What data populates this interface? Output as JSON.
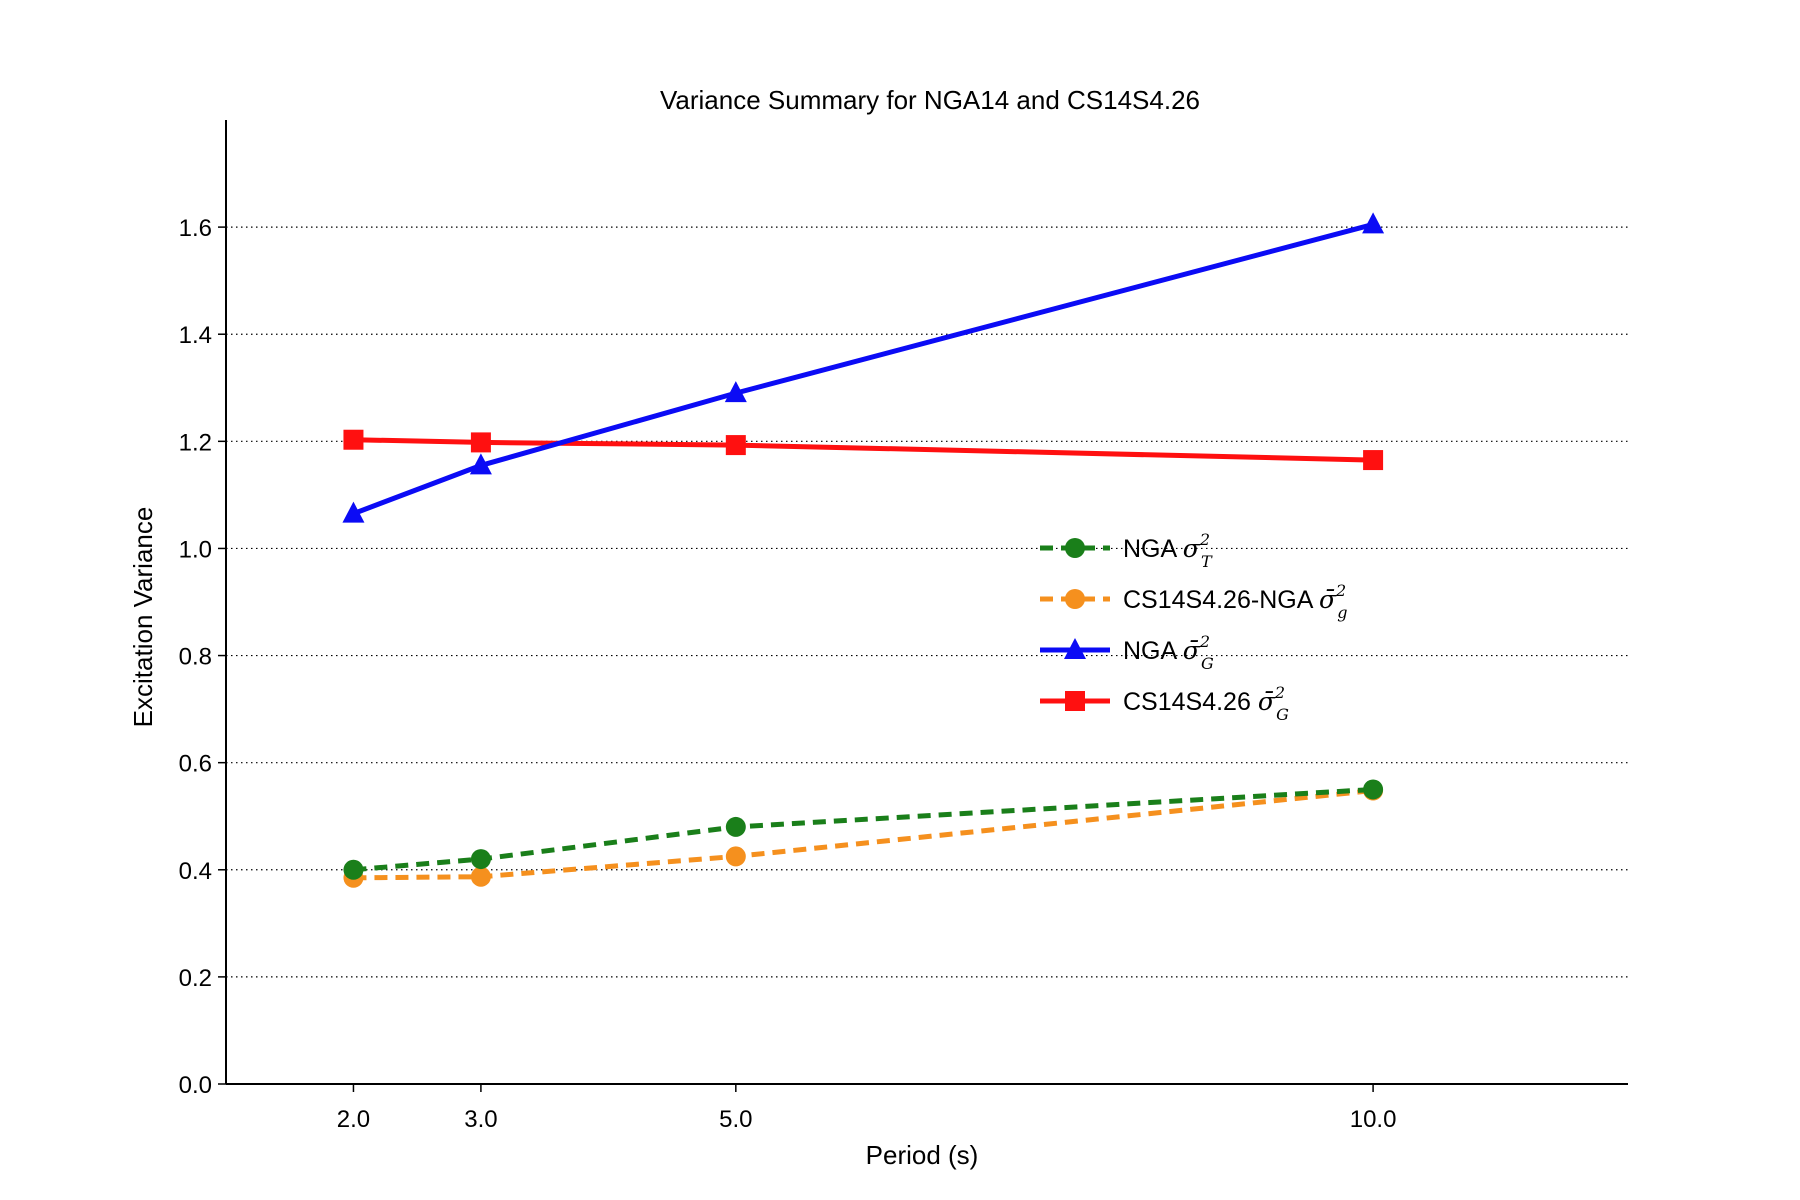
{
  "chart_data": {
    "type": "line",
    "title": "Variance Summary for NGA14 and CS14S4.26",
    "xlabel": "Period (s)",
    "ylabel": "Excitation Variance",
    "x": [
      2.0,
      3.0,
      5.0,
      10.0
    ],
    "xtick_labels": [
      "2.0",
      "3.0",
      "5.0",
      "10.0"
    ],
    "xlim": [
      1.0,
      12.0
    ],
    "ylim": [
      0.0,
      1.8
    ],
    "yticks": [
      0.0,
      0.2,
      0.4,
      0.6,
      0.8,
      1.0,
      1.2,
      1.4,
      1.6
    ],
    "ytick_labels": [
      "0.0",
      "0.2",
      "0.4",
      "0.6",
      "0.8",
      "1.0",
      "1.2",
      "1.4",
      "1.6"
    ],
    "grid": "horizontal dotted",
    "legend_position": "center-right",
    "series": [
      {
        "label_text": "NGA ",
        "label_math": "σ",
        "label_sup": "2",
        "label_sub": "T",
        "bar": false,
        "color": "#1a7f1a",
        "dash": true,
        "marker": "circle",
        "values": [
          0.4,
          0.42,
          0.48,
          0.55
        ]
      },
      {
        "label_text": "CS14S4.26-NGA ",
        "label_math": "σ",
        "label_sup": "2",
        "label_sub": "g",
        "bar": true,
        "color": "#f5901e",
        "dash": true,
        "marker": "circle",
        "values": [
          0.385,
          0.387,
          0.425,
          0.548
        ]
      },
      {
        "label_text": "NGA ",
        "label_math": "σ",
        "label_sup": "2",
        "label_sub": "G",
        "bar": true,
        "color": "#0b0bf5",
        "dash": false,
        "marker": "triangle",
        "values": [
          1.065,
          1.155,
          1.29,
          1.605
        ]
      },
      {
        "label_text": "CS14S4.26 ",
        "label_math": "σ",
        "label_sup": "2",
        "label_sub": "G",
        "bar": true,
        "color": "#ff1010",
        "dash": false,
        "marker": "square",
        "values": [
          1.203,
          1.198,
          1.193,
          1.165
        ]
      }
    ]
  }
}
